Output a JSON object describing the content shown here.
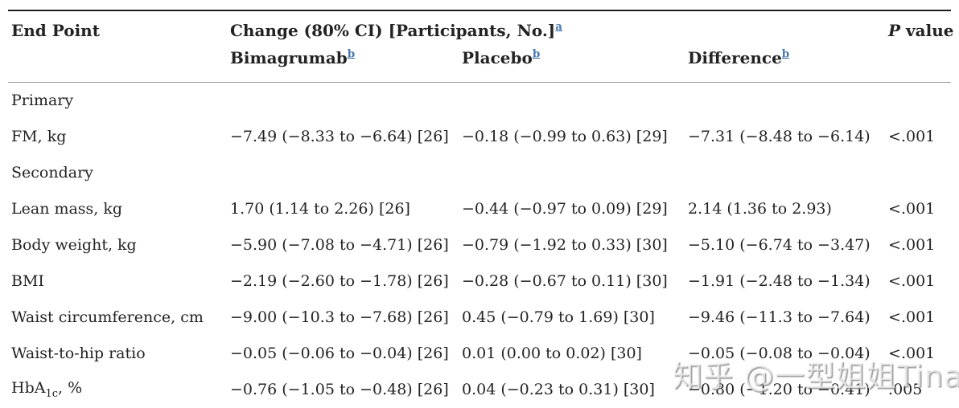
{
  "page": {
    "background": "#ffffff",
    "text_color": "#232323",
    "footnote_link_color": "#4a79ae",
    "rule_dark": "#1c1c1c",
    "rule_light": "#9b9b9b"
  },
  "table": {
    "headers": {
      "end_point": "End Point",
      "change_group": "Change (80% CI) [Participants, No.]",
      "change_group_footnote": "a",
      "sub_columns": [
        {
          "label": "Bimagrumab",
          "footnote": "b"
        },
        {
          "label": "Placebo",
          "footnote": "b"
        },
        {
          "label": "Difference",
          "footnote": "b"
        }
      ],
      "p_italic": "P",
      "p_rest": " value"
    },
    "rows": [
      {
        "type": "section",
        "label": "Primary"
      },
      {
        "type": "data",
        "label": "FM, kg",
        "bimagrumab": "−7.49 (−8.33 to −6.64) [26]",
        "placebo": "−0.18 (−0.99 to 0.63) [29]",
        "difference": "−7.31 (−8.48 to −6.14)",
        "p_value": "<.001"
      },
      {
        "type": "section",
        "label": "Secondary"
      },
      {
        "type": "data",
        "label": "Lean mass, kg",
        "bimagrumab": "1.70 (1.14 to 2.26) [26]",
        "placebo": "−0.44 (−0.97 to 0.09) [29]",
        "difference": "2.14 (1.36 to 2.93)",
        "p_value": "<.001"
      },
      {
        "type": "data",
        "label": "Body weight, kg",
        "bimagrumab": "−5.90 (−7.08 to −4.71) [26]",
        "placebo": "−0.79 (−1.92 to 0.33) [30]",
        "difference": "−5.10 (−6.74 to −3.47)",
        "p_value": "<.001"
      },
      {
        "type": "data",
        "label": "BMI",
        "bimagrumab": "−2.19 (−2.60 to −1.78) [26]",
        "placebo": "−0.28 (−0.67 to 0.11) [30]",
        "difference": "−1.91 (−2.48 to −1.34)",
        "p_value": "<.001"
      },
      {
        "type": "data",
        "label": "Waist circumference, cm",
        "bimagrumab": "−9.00 (−10.3 to −7.68) [26]",
        "placebo": "0.45 (−0.79 to 1.69) [30]",
        "difference": "−9.46 (−11.3 to −7.64)",
        "p_value": "<.001"
      },
      {
        "type": "data",
        "label": "Waist-to-hip ratio",
        "bimagrumab": "−0.05 (−0.06 to −0.04) [26]",
        "placebo": "0.01 (0.00 to 0.02) [30]",
        "difference": "−0.05 (−0.08 to −0.04)",
        "p_value": "<.001"
      },
      {
        "type": "data",
        "label": "HbA",
        "label_sub": "1c",
        "label_suffix": ", %",
        "bimagrumab": "−0.76 (−1.05 to −0.48) [26]",
        "placebo": "0.04 (−0.23 to 0.31) [30]",
        "difference": "−0.80 (−1.20 to −0.41)",
        "p_value": ".005"
      }
    ]
  },
  "watermark": {
    "text": "知乎 @一型姐姐Tina"
  }
}
